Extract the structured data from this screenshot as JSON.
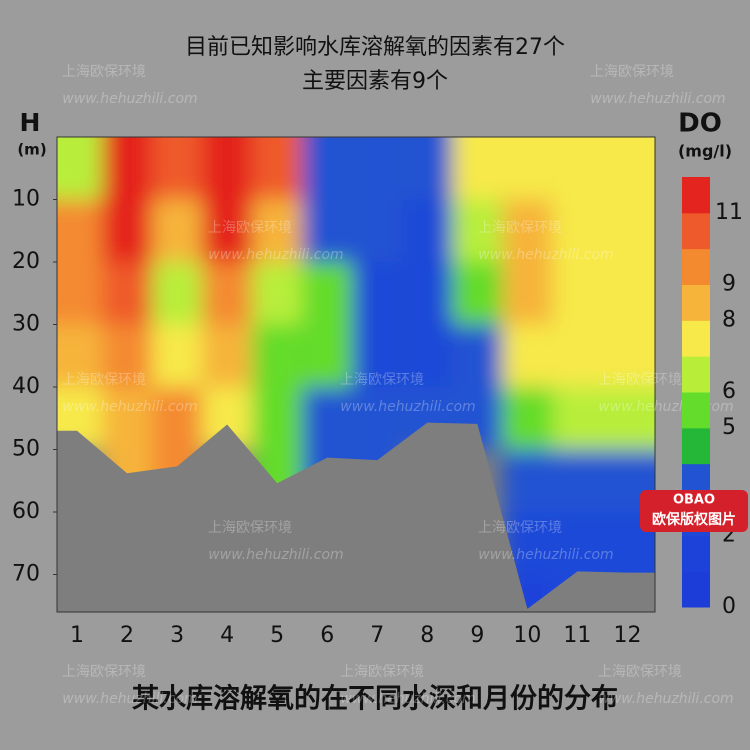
{
  "chart_data": {
    "type": "heatmap",
    "title": "目前已知影响水库溶解氧的因素有27个",
    "subtitle": "主要因素有9个",
    "y_label": "H",
    "y_unit": "(m)",
    "colorbar_label": "DO",
    "colorbar_unit": "(mg/l)",
    "caption": "某水库溶解氧的在不同水深和月份的分布",
    "watermark_company": "上海欧保环境",
    "watermark_url": "www.hehuzhili.com",
    "badge_logo": "OBAO",
    "badge_text": "欧保版权图片",
    "x": [
      1,
      2,
      3,
      4,
      5,
      6,
      7,
      8,
      9,
      10,
      11,
      12
    ],
    "xlim": [
      0.6,
      12.55
    ],
    "y": [
      5,
      15,
      25,
      35,
      45,
      55,
      65,
      75
    ],
    "ylim": [
      0,
      76
    ],
    "y_reversed": true,
    "yticks": [
      10,
      20,
      30,
      40,
      50,
      60,
      70
    ],
    "z": [
      [
        6,
        9,
        9,
        8,
        7,
        null,
        null,
        null
      ],
      [
        11,
        11,
        10,
        9,
        8,
        8,
        null,
        null
      ],
      [
        10,
        8,
        6,
        7,
        9,
        9,
        null,
        null
      ],
      [
        11,
        11,
        9,
        8,
        7,
        null,
        null,
        null
      ],
      [
        10,
        8,
        6,
        5,
        5,
        5,
        null,
        null
      ],
      [
        3,
        3,
        5,
        5,
        3,
        3,
        null,
        null
      ],
      [
        3,
        3,
        2,
        2,
        3,
        3,
        null,
        null
      ],
      [
        3,
        2,
        2,
        2,
        3,
        null,
        null,
        null
      ],
      [
        7,
        6,
        5,
        3,
        3,
        null,
        null,
        null
      ],
      [
        7,
        8,
        8,
        7,
        5,
        3,
        2,
        1
      ],
      [
        7,
        7,
        7,
        7,
        6,
        3,
        2,
        2
      ],
      [
        7,
        7,
        7,
        7,
        6,
        3,
        2,
        2
      ]
    ],
    "bottom_depth": [
      47,
      53.8,
      52.7,
      46,
      55.4,
      51.3,
      51.7,
      45.7,
      45.9,
      75.5,
      69.5,
      69.7
    ],
    "bottom_color": "#7e7e7e",
    "levels": [
      0,
      1,
      2,
      3,
      4,
      5,
      6,
      7,
      8,
      9,
      10,
      11,
      12
    ],
    "level_colors": [
      "#1c3dd8",
      "#1d42da",
      "#1f48d8",
      "#2153d2",
      "#25b838",
      "#63dc2c",
      "#b8ee3a",
      "#f7e94a",
      "#f6b43a",
      "#f48a30",
      "#ef5a2c",
      "#e4241e"
    ],
    "colorbar_ticks": [
      0,
      2,
      5,
      6,
      8,
      9,
      11
    ]
  }
}
